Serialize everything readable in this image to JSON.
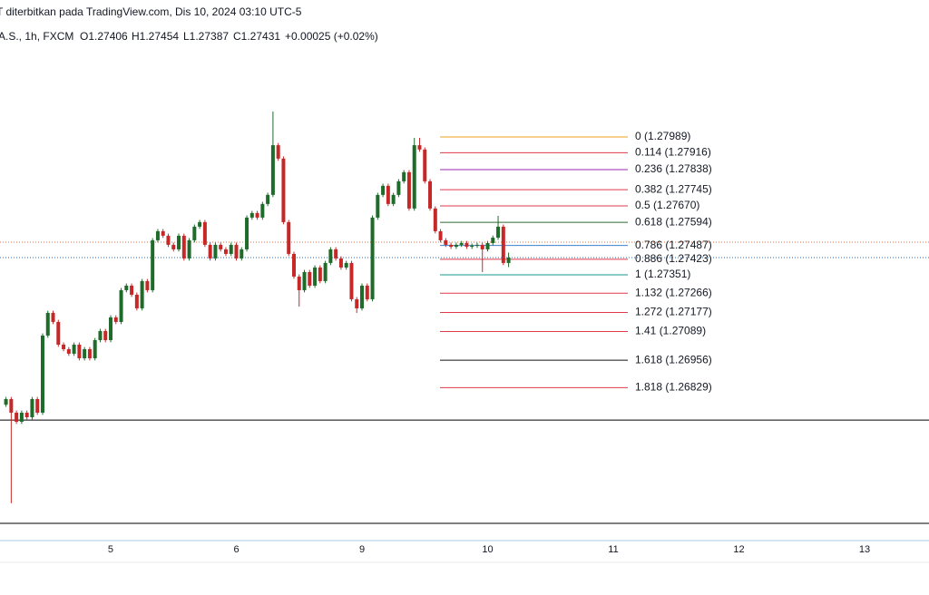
{
  "chart_data": {
    "type": "candlestick",
    "header": {
      "line1": "T diterbitkan pada TradingView.com, Dis 10, 2024 03:10 UTC-5",
      "symbol": "A.S., 1h, FXCM",
      "open": "O1.27406",
      "high": "H1.27454",
      "low": "L1.27387",
      "close": "C1.27431",
      "change": "+0.00025 (+0.02%)"
    },
    "up_color": "#1e6b2a",
    "down_color": "#c62828",
    "xlim": [
      -21.14,
      156.3
    ],
    "xticks": [
      {
        "value": 0,
        "label": "5"
      },
      {
        "value": 24,
        "label": "6"
      },
      {
        "value": 48,
        "label": "9"
      },
      {
        "value": 72,
        "label": "10"
      },
      {
        "value": 96,
        "label": "11"
      },
      {
        "value": 120,
        "label": "12"
      },
      {
        "value": 144,
        "label": "13"
      }
    ],
    "ylim": [
      1.26138,
      1.28623
    ],
    "x": [
      -20,
      -19,
      -18,
      -17,
      -16,
      -15,
      -14,
      -13,
      -12,
      -11,
      -10,
      -9,
      -8,
      -7,
      -6,
      -5,
      -4,
      -3,
      -2,
      -1,
      0,
      1,
      2,
      3,
      4,
      5,
      6,
      7,
      8,
      9,
      10,
      11,
      12,
      13,
      14,
      15,
      16,
      17,
      18,
      19,
      20,
      21,
      22,
      23,
      24,
      25,
      26,
      27,
      28,
      29,
      30,
      31,
      32,
      33,
      34,
      35,
      36,
      37,
      38,
      39,
      40,
      41,
      42,
      43,
      44,
      45,
      46,
      47,
      48,
      49,
      50,
      51,
      52,
      53,
      54,
      55,
      56,
      57,
      58,
      59,
      60,
      61,
      62,
      63,
      64,
      65,
      66,
      67,
      68,
      69,
      70,
      71,
      72,
      73,
      74,
      75,
      76
    ],
    "open": [
      1.2675,
      1.26776,
      1.26713,
      1.26671,
      1.26713,
      1.26692,
      1.26776,
      1.26713,
      1.2707,
      1.27175,
      1.27133,
      1.27028,
      1.27007,
      1.26986,
      1.27028,
      1.26965,
      1.27007,
      1.26965,
      1.27049,
      1.27091,
      1.27049,
      1.27154,
      1.27133,
      1.2728,
      1.27301,
      1.27259,
      1.27196,
      1.27322,
      1.2728,
      1.27511,
      1.27553,
      1.27532,
      1.2749,
      1.27469,
      1.27532,
      1.27427,
      1.27511,
      1.27574,
      1.27595,
      1.2749,
      1.27427,
      1.2749,
      1.27469,
      1.27448,
      1.2749,
      1.27427,
      1.27469,
      1.27616,
      1.27637,
      1.27616,
      1.27679,
      1.27721,
      1.27951,
      1.27889,
      1.27595,
      1.27448,
      1.27343,
      1.2728,
      1.27364,
      1.27301,
      1.27385,
      1.27322,
      1.27406,
      1.27469,
      1.27427,
      1.27385,
      1.27406,
      1.27238,
      1.27196,
      1.27301,
      1.27238,
      1.27616,
      1.27721,
      1.27763,
      1.27679,
      1.27721,
      1.27784,
      1.27826,
      1.27658,
      1.27951,
      1.27931,
      1.27784,
      1.27658,
      1.27553,
      1.27511,
      1.2749,
      1.27481,
      1.2749,
      1.27498,
      1.27481,
      1.27486,
      1.2749,
      1.27469,
      1.27498,
      1.27523,
      1.27574,
      1.27406
    ],
    "high": [
      1.26786,
      1.26786,
      1.26723,
      1.26723,
      1.26723,
      1.26786,
      1.26786,
      1.2708,
      1.27185,
      1.27185,
      1.27143,
      1.27038,
      1.27017,
      1.27038,
      1.27038,
      1.27017,
      1.27017,
      1.27059,
      1.27101,
      1.27101,
      1.27164,
      1.27164,
      1.2729,
      1.27311,
      1.27311,
      1.27269,
      1.27332,
      1.27332,
      1.27521,
      1.27563,
      1.27563,
      1.27542,
      1.275,
      1.27542,
      1.27542,
      1.27521,
      1.27584,
      1.27605,
      1.27605,
      1.275,
      1.275,
      1.275,
      1.27479,
      1.275,
      1.275,
      1.27479,
      1.27626,
      1.27647,
      1.27647,
      1.27689,
      1.27731,
      1.28107,
      1.27961,
      1.27899,
      1.27605,
      1.27458,
      1.27353,
      1.27374,
      1.27374,
      1.27395,
      1.27395,
      1.27416,
      1.27479,
      1.27479,
      1.27437,
      1.27416,
      1.27416,
      1.27248,
      1.27311,
      1.27311,
      1.27626,
      1.27731,
      1.27773,
      1.27773,
      1.27731,
      1.27794,
      1.27836,
      1.27836,
      1.27985,
      1.27985,
      1.27941,
      1.27794,
      1.27668,
      1.27563,
      1.27521,
      1.275,
      1.275,
      1.27508,
      1.27508,
      1.27496,
      1.275,
      1.275,
      1.27508,
      1.27533,
      1.27624,
      1.27584,
      1.27454
    ],
    "low": [
      1.2674,
      1.26294,
      1.26661,
      1.26661,
      1.26682,
      1.26682,
      1.26703,
      1.26703,
      1.2706,
      1.27123,
      1.27018,
      1.26997,
      1.26976,
      1.26976,
      1.26955,
      1.26955,
      1.26955,
      1.26955,
      1.27039,
      1.27039,
      1.27039,
      1.27123,
      1.27123,
      1.2727,
      1.27249,
      1.27186,
      1.27186,
      1.2727,
      1.2727,
      1.27501,
      1.27522,
      1.2748,
      1.27459,
      1.27459,
      1.27417,
      1.27417,
      1.27501,
      1.27564,
      1.2748,
      1.27417,
      1.27417,
      1.27459,
      1.27438,
      1.27438,
      1.27417,
      1.27417,
      1.27459,
      1.27606,
      1.27606,
      1.27606,
      1.27669,
      1.27711,
      1.27879,
      1.27585,
      1.27438,
      1.27333,
      1.27204,
      1.2727,
      1.27291,
      1.27291,
      1.27312,
      1.27312,
      1.27396,
      1.27417,
      1.27375,
      1.27375,
      1.27228,
      1.27175,
      1.27186,
      1.27228,
      1.27228,
      1.27606,
      1.27711,
      1.27669,
      1.27669,
      1.27711,
      1.27774,
      1.27648,
      1.27648,
      1.27921,
      1.27774,
      1.27648,
      1.27543,
      1.27501,
      1.2748,
      1.27471,
      1.27471,
      1.2748,
      1.27471,
      1.27471,
      1.27476,
      1.27364,
      1.27459,
      1.27488,
      1.27513,
      1.27396,
      1.27387
    ],
    "close": [
      1.26776,
      1.26713,
      1.26671,
      1.26713,
      1.26692,
      1.26776,
      1.26713,
      1.2707,
      1.27175,
      1.27133,
      1.27028,
      1.27007,
      1.26986,
      1.27028,
      1.26965,
      1.27007,
      1.26965,
      1.27049,
      1.27091,
      1.27049,
      1.27154,
      1.27133,
      1.2728,
      1.27301,
      1.27259,
      1.27196,
      1.27322,
      1.2728,
      1.27511,
      1.27553,
      1.27532,
      1.2749,
      1.27469,
      1.27532,
      1.27427,
      1.27511,
      1.27574,
      1.27595,
      1.2749,
      1.27427,
      1.2749,
      1.27469,
      1.27448,
      1.2749,
      1.27427,
      1.27469,
      1.27616,
      1.27637,
      1.27616,
      1.27679,
      1.27721,
      1.27951,
      1.27889,
      1.27595,
      1.27448,
      1.27343,
      1.2728,
      1.27364,
      1.27301,
      1.27385,
      1.27322,
      1.27406,
      1.27469,
      1.27427,
      1.27385,
      1.27406,
      1.27238,
      1.27196,
      1.27301,
      1.27238,
      1.27616,
      1.27721,
      1.27763,
      1.27679,
      1.27721,
      1.27784,
      1.27826,
      1.27658,
      1.27951,
      1.27931,
      1.27784,
      1.27658,
      1.27553,
      1.27511,
      1.2749,
      1.27481,
      1.2749,
      1.27498,
      1.27481,
      1.27486,
      1.2749,
      1.27469,
      1.27498,
      1.27523,
      1.27574,
      1.27406,
      1.27431
    ],
    "fib_levels": [
      {
        "value": 1.27989,
        "label": "0 (1.27989)",
        "color": "#f0a01e"
      },
      {
        "value": 1.27916,
        "label": "0.114 (1.27916)",
        "color": "#e0394a"
      },
      {
        "value": 1.27838,
        "label": "0.236 (1.27838)",
        "color": "#9c27b0"
      },
      {
        "value": 1.27745,
        "label": "0.382 (1.27745)",
        "color": "#e0394a"
      },
      {
        "value": 1.2767,
        "label": "0.5 (1.27670)",
        "color": "#e0394a"
      },
      {
        "value": 1.27594,
        "label": "0.618 (1.27594)",
        "color": "#2e6b30"
      },
      {
        "value": 1.27487,
        "label": "0.786 (1.27487)",
        "color": "#3d7fcf"
      },
      {
        "value": 1.27423,
        "label": "0.886 (1.27423)",
        "color": "#e0394a"
      },
      {
        "value": 1.27351,
        "label": "1 (1.27351)",
        "color": "#1a9a8e"
      },
      {
        "value": 1.27266,
        "label": "1.132 (1.27266)",
        "color": "#e0394a"
      },
      {
        "value": 1.27177,
        "label": "1.272 (1.27177)",
        "color": "#e0394a"
      },
      {
        "value": 1.27089,
        "label": "1.41 (1.27089)",
        "color": "#e0394a"
      },
      {
        "value": 1.26956,
        "label": "1.618 (1.26956)",
        "color": "#111111"
      },
      {
        "value": 1.26829,
        "label": "1.818 (1.26829)",
        "color": "#e0394a"
      }
    ],
    "horizontal_lines": [
      {
        "value": 1.26679,
        "color": "#000000"
      },
      {
        "value": 1.26201,
        "color": "#000000"
      }
    ],
    "price_lines": [
      {
        "value": 1.27502,
        "color": "#e07040"
      },
      {
        "value": 1.27431,
        "color": "#2a6fb0"
      }
    ]
  }
}
